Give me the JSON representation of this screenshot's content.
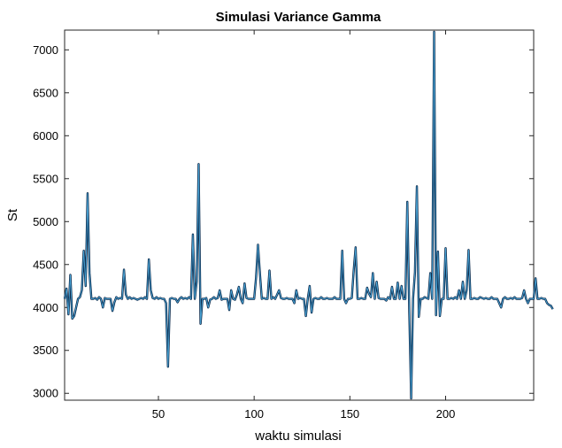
{
  "chart_data": {
    "type": "line",
    "title": "Simulasi Variance Gamma",
    "xlabel": "waktu simulasi",
    "ylabel": "St",
    "xlim": [
      1,
      246
    ],
    "ylim": [
      2920,
      7230
    ],
    "xticks": [
      50,
      100,
      150,
      200
    ],
    "yticks": [
      3000,
      3500,
      4000,
      4500,
      5000,
      5500,
      6000,
      6500,
      7000
    ],
    "grid": false,
    "colors": {
      "outer": "#0b2748",
      "inner": "#4aa6d8"
    },
    "series": [
      {
        "values": [
          4100,
          4220,
          3920,
          4380,
          3870,
          3900,
          4000,
          4100,
          4120,
          4200,
          4660,
          4250,
          5330,
          4400,
          4100,
          4100,
          4110,
          4090,
          4120,
          4100,
          4000,
          4110,
          4100,
          4100,
          4100,
          3960,
          4060,
          4120,
          4100,
          4110,
          4100,
          4440,
          4150,
          4100,
          4120,
          4100,
          4110,
          4100,
          4090,
          4100,
          4110,
          4100,
          4120,
          4100,
          4560,
          4200,
          4110,
          4100,
          4120,
          4100,
          4110,
          4100,
          4100,
          4050,
          3310,
          4100,
          4110,
          4100,
          4100,
          4060,
          4100,
          4120,
          4100,
          4110,
          4100,
          4120,
          4100,
          4850,
          4100,
          4300,
          5670,
          3810,
          4100,
          4100,
          4110,
          4000,
          4090,
          4100,
          4120,
          4100,
          4110,
          4200,
          4090,
          4100,
          4100,
          4100,
          3970,
          4200,
          4100,
          4090,
          4150,
          4240,
          4100,
          4050,
          4280,
          4110,
          4100,
          4100,
          4100,
          4100,
          4350,
          4730,
          4400,
          4100,
          4110,
          4100,
          4100,
          4430,
          4100,
          4120,
          4100,
          4150,
          4200,
          4110,
          4100,
          4100,
          4110,
          4100,
          4100,
          4100,
          4050,
          4200,
          4100,
          4110,
          4100,
          4100,
          3900,
          4100,
          4250,
          3940,
          4100,
          4110,
          4100,
          4100,
          4120,
          4100,
          4100,
          4110,
          4100,
          4100,
          4100,
          4120,
          4100,
          4100,
          4100,
          4660,
          4100,
          4050,
          4100,
          4100,
          4110,
          4430,
          4700,
          4100,
          4100,
          4110,
          4100,
          4100,
          4230,
          4160,
          4120,
          4400,
          4100,
          4300,
          4110,
          4100,
          4100,
          4100,
          4080,
          4120,
          4100,
          4240,
          4100,
          4100,
          4290,
          4100,
          4250,
          4100,
          4100,
          5230,
          3980,
          2940,
          4100,
          4410,
          5410,
          3890,
          4100,
          4100,
          4120,
          4110,
          4100,
          4400,
          4100,
          7210,
          3910,
          4650,
          3900,
          4100,
          4100,
          4690,
          4100,
          4100,
          4110,
          4100,
          4120,
          4100,
          4200,
          4100,
          4300,
          4100,
          4200,
          4670,
          4100,
          4100,
          4110,
          4100,
          4100,
          4120,
          4110,
          4100,
          4110,
          4100,
          4100,
          4120,
          4100,
          4100,
          4100,
          4050,
          4000,
          4100,
          4120,
          4100,
          4100,
          4110,
          4100,
          4120,
          4100,
          4100,
          4100,
          4110,
          4200,
          4100,
          4050,
          4100,
          4100,
          4100,
          4340,
          4100,
          4100,
          4110,
          4100,
          4100,
          4050,
          4030,
          4020,
          3980
        ]
      }
    ]
  }
}
